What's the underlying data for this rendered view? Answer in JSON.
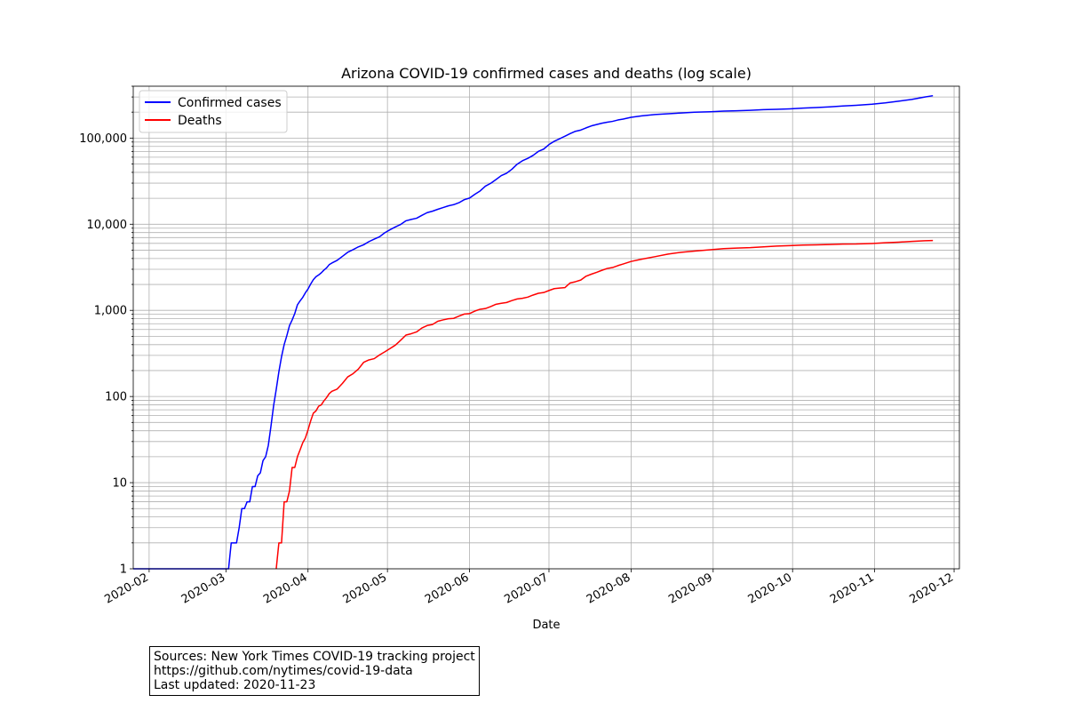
{
  "chart_data": {
    "type": "line",
    "title": "Arizona COVID-19 confirmed cases and deaths (log scale)",
    "xlabel": "Date",
    "ylabel": "",
    "y_scale": "log",
    "ylim": [
      1,
      400000
    ],
    "xlim": [
      "2020-01-26",
      "2020-12-03"
    ],
    "grid": true,
    "legend_position": "upper left",
    "x_tick_labels": [
      "2020-02",
      "2020-03",
      "2020-04",
      "2020-05",
      "2020-06",
      "2020-07",
      "2020-08",
      "2020-09",
      "2020-10",
      "2020-11",
      "2020-12"
    ],
    "x_ticks": [
      "2020-02-01",
      "2020-03-01",
      "2020-04-01",
      "2020-05-01",
      "2020-06-01",
      "2020-07-01",
      "2020-08-01",
      "2020-09-01",
      "2020-10-01",
      "2020-11-01",
      "2020-12-01"
    ],
    "y_ticks": [
      1,
      10,
      100,
      1000,
      10000,
      100000
    ],
    "y_tick_labels": [
      "1",
      "10",
      "100",
      "1,000",
      "10,000",
      "100,000"
    ],
    "series": [
      {
        "name": "Confirmed cases",
        "color": "#0000ff",
        "points": [
          [
            "2020-01-26",
            1
          ],
          [
            "2020-03-02",
            1
          ],
          [
            "2020-03-03",
            2
          ],
          [
            "2020-03-05",
            2
          ],
          [
            "2020-03-06",
            3
          ],
          [
            "2020-03-07",
            5
          ],
          [
            "2020-03-08",
            5
          ],
          [
            "2020-03-09",
            6
          ],
          [
            "2020-03-10",
            6
          ],
          [
            "2020-03-11",
            9
          ],
          [
            "2020-03-12",
            9
          ],
          [
            "2020-03-13",
            12
          ],
          [
            "2020-03-14",
            13
          ],
          [
            "2020-03-15",
            18
          ],
          [
            "2020-03-16",
            20
          ],
          [
            "2020-03-17",
            27
          ],
          [
            "2020-03-18",
            45
          ],
          [
            "2020-03-19",
            78
          ],
          [
            "2020-03-20",
            121
          ],
          [
            "2020-03-21",
            194
          ],
          [
            "2020-03-22",
            290
          ],
          [
            "2020-03-23",
            401
          ],
          [
            "2020-03-24",
            508
          ],
          [
            "2020-03-25",
            665
          ],
          [
            "2020-03-26",
            773
          ],
          [
            "2020-03-27",
            919
          ],
          [
            "2020-03-28",
            1159
          ],
          [
            "2020-03-29",
            1289
          ],
          [
            "2020-03-30",
            1413
          ],
          [
            "2020-03-31",
            1598
          ],
          [
            "2020-04-01",
            1769
          ],
          [
            "2020-04-02",
            2019
          ],
          [
            "2020-04-03",
            2269
          ],
          [
            "2020-04-04",
            2456
          ],
          [
            "2020-04-05",
            2575
          ],
          [
            "2020-04-06",
            2726
          ],
          [
            "2020-04-07",
            2932
          ],
          [
            "2020-04-08",
            3112
          ],
          [
            "2020-04-09",
            3393
          ],
          [
            "2020-04-10",
            3542
          ],
          [
            "2020-04-12",
            3806
          ],
          [
            "2020-04-14",
            4237
          ],
          [
            "2020-04-16",
            4724
          ],
          [
            "2020-04-18",
            5068
          ],
          [
            "2020-04-20",
            5459
          ],
          [
            "2020-04-22",
            5772
          ],
          [
            "2020-04-24",
            6280
          ],
          [
            "2020-04-26",
            6716
          ],
          [
            "2020-04-28",
            7148
          ],
          [
            "2020-04-30",
            7962
          ],
          [
            "2020-05-02",
            8640
          ],
          [
            "2020-05-04",
            9305
          ],
          [
            "2020-05-06",
            9945
          ],
          [
            "2020-05-08",
            10960
          ],
          [
            "2020-05-10",
            11380
          ],
          [
            "2020-05-12",
            11736
          ],
          [
            "2020-05-14",
            12674
          ],
          [
            "2020-05-16",
            13631
          ],
          [
            "2020-05-18",
            14170
          ],
          [
            "2020-05-20",
            14897
          ],
          [
            "2020-05-22",
            15608
          ],
          [
            "2020-05-24",
            16339
          ],
          [
            "2020-05-26",
            16864
          ],
          [
            "2020-05-28",
            17763
          ],
          [
            "2020-05-30",
            19255
          ],
          [
            "2020-06-01",
            20123
          ],
          [
            "2020-06-03",
            22223
          ],
          [
            "2020-06-05",
            24332
          ],
          [
            "2020-06-07",
            27678
          ],
          [
            "2020-06-09",
            29852
          ],
          [
            "2020-06-11",
            33039
          ],
          [
            "2020-06-13",
            36705
          ],
          [
            "2020-06-15",
            39097
          ],
          [
            "2020-06-17",
            43443
          ],
          [
            "2020-06-19",
            49798
          ],
          [
            "2020-06-21",
            54586
          ],
          [
            "2020-06-23",
            58179
          ],
          [
            "2020-06-25",
            63030
          ],
          [
            "2020-06-27",
            70051
          ],
          [
            "2020-06-29",
            74500
          ],
          [
            "2020-07-01",
            84092
          ],
          [
            "2020-07-03",
            91858
          ],
          [
            "2020-07-05",
            98089
          ],
          [
            "2020-07-07",
            105094
          ],
          [
            "2020-07-09",
            112671
          ],
          [
            "2020-07-11",
            119930
          ],
          [
            "2020-07-13",
            123824
          ],
          [
            "2020-07-15",
            131354
          ],
          [
            "2020-07-17",
            138523
          ],
          [
            "2020-07-19",
            143624
          ],
          [
            "2020-07-21",
            148683
          ],
          [
            "2020-07-23",
            152944
          ],
          [
            "2020-07-25",
            156301
          ],
          [
            "2020-07-27",
            162014
          ],
          [
            "2020-07-29",
            165934
          ],
          [
            "2020-08-01",
            174010
          ],
          [
            "2020-08-05",
            181097
          ],
          [
            "2020-08-10",
            187523
          ],
          [
            "2020-08-15",
            191721
          ],
          [
            "2020-08-20",
            195557
          ],
          [
            "2020-08-25",
            199459
          ],
          [
            "2020-08-31",
            202342
          ],
          [
            "2020-09-05",
            205666
          ],
          [
            "2020-09-10",
            207523
          ],
          [
            "2020-09-15",
            209907
          ],
          [
            "2020-09-20",
            213551
          ],
          [
            "2020-09-25",
            215852
          ],
          [
            "2020-09-30",
            218507
          ],
          [
            "2020-10-05",
            222538
          ],
          [
            "2020-10-10",
            226050
          ],
          [
            "2020-10-15",
            230407
          ],
          [
            "2020-10-20",
            235882
          ],
          [
            "2020-10-25",
            240122
          ],
          [
            "2020-10-31",
            247473
          ],
          [
            "2020-11-05",
            256540
          ],
          [
            "2020-11-10",
            268044
          ],
          [
            "2020-11-15",
            281198
          ],
          [
            "2020-11-20",
            299548
          ],
          [
            "2020-11-23",
            310265
          ]
        ]
      },
      {
        "name": "Deaths",
        "color": "#ff0000",
        "points": [
          [
            "2020-03-20",
            1
          ],
          [
            "2020-03-21",
            2
          ],
          [
            "2020-03-22",
            2
          ],
          [
            "2020-03-23",
            6
          ],
          [
            "2020-03-24",
            6
          ],
          [
            "2020-03-25",
            8
          ],
          [
            "2020-03-26",
            15
          ],
          [
            "2020-03-27",
            15
          ],
          [
            "2020-03-28",
            20
          ],
          [
            "2020-03-29",
            24
          ],
          [
            "2020-03-30",
            29
          ],
          [
            "2020-03-31",
            33
          ],
          [
            "2020-04-01",
            41
          ],
          [
            "2020-04-02",
            52
          ],
          [
            "2020-04-03",
            64
          ],
          [
            "2020-04-04",
            68
          ],
          [
            "2020-04-05",
            77
          ],
          [
            "2020-04-06",
            80
          ],
          [
            "2020-04-07",
            89
          ],
          [
            "2020-04-08",
            97
          ],
          [
            "2020-04-09",
            108
          ],
          [
            "2020-04-10",
            115
          ],
          [
            "2020-04-12",
            122
          ],
          [
            "2020-04-14",
            142
          ],
          [
            "2020-04-16",
            169
          ],
          [
            "2020-04-18",
            184
          ],
          [
            "2020-04-20",
            208
          ],
          [
            "2020-04-22",
            249
          ],
          [
            "2020-04-24",
            266
          ],
          [
            "2020-04-26",
            275
          ],
          [
            "2020-04-28",
            304
          ],
          [
            "2020-04-30",
            330
          ],
          [
            "2020-05-02",
            361
          ],
          [
            "2020-05-04",
            395
          ],
          [
            "2020-05-06",
            450
          ],
          [
            "2020-05-08",
            517
          ],
          [
            "2020-05-10",
            536
          ],
          [
            "2020-05-12",
            562
          ],
          [
            "2020-05-14",
            624
          ],
          [
            "2020-05-16",
            667
          ],
          [
            "2020-05-18",
            686
          ],
          [
            "2020-05-20",
            747
          ],
          [
            "2020-05-22",
            775
          ],
          [
            "2020-05-24",
            800
          ],
          [
            "2020-05-26",
            807
          ],
          [
            "2020-05-28",
            857
          ],
          [
            "2020-05-30",
            906
          ],
          [
            "2020-06-01",
            917
          ],
          [
            "2020-06-03",
            981
          ],
          [
            "2020-06-05",
            1030
          ],
          [
            "2020-06-07",
            1050
          ],
          [
            "2020-06-09",
            1106
          ],
          [
            "2020-06-11",
            1177
          ],
          [
            "2020-06-13",
            1207
          ],
          [
            "2020-06-15",
            1234
          ],
          [
            "2020-06-17",
            1300
          ],
          [
            "2020-06-19",
            1356
          ],
          [
            "2020-06-21",
            1381
          ],
          [
            "2020-06-23",
            1425
          ],
          [
            "2020-06-25",
            1506
          ],
          [
            "2020-06-27",
            1579
          ],
          [
            "2020-06-29",
            1611
          ],
          [
            "2020-07-01",
            1700
          ],
          [
            "2020-07-03",
            1788
          ],
          [
            "2020-07-05",
            1813
          ],
          [
            "2020-07-07",
            1835
          ],
          [
            "2020-07-09",
            2082
          ],
          [
            "2020-07-11",
            2151
          ],
          [
            "2020-07-13",
            2246
          ],
          [
            "2020-07-15",
            2492
          ],
          [
            "2020-07-17",
            2631
          ],
          [
            "2020-07-19",
            2763
          ],
          [
            "2020-07-21",
            2918
          ],
          [
            "2020-07-23",
            3065
          ],
          [
            "2020-07-25",
            3142
          ],
          [
            "2020-07-27",
            3304
          ],
          [
            "2020-07-29",
            3454
          ],
          [
            "2020-08-01",
            3695
          ],
          [
            "2020-08-05",
            3932
          ],
          [
            "2020-08-10",
            4199
          ],
          [
            "2020-08-15",
            4506
          ],
          [
            "2020-08-20",
            4728
          ],
          [
            "2020-08-25",
            4876
          ],
          [
            "2020-08-31",
            5052
          ],
          [
            "2020-09-05",
            5205
          ],
          [
            "2020-09-10",
            5288
          ],
          [
            "2020-09-15",
            5346
          ],
          [
            "2020-09-20",
            5460
          ],
          [
            "2020-09-25",
            5575
          ],
          [
            "2020-09-30",
            5650
          ],
          [
            "2020-10-05",
            5727
          ],
          [
            "2020-10-10",
            5759
          ],
          [
            "2020-10-15",
            5810
          ],
          [
            "2020-10-20",
            5874
          ],
          [
            "2020-10-25",
            5891
          ],
          [
            "2020-10-31",
            5979
          ],
          [
            "2020-11-05",
            6094
          ],
          [
            "2020-11-10",
            6192
          ],
          [
            "2020-11-15",
            6312
          ],
          [
            "2020-11-20",
            6426
          ],
          [
            "2020-11-23",
            6464
          ]
        ]
      }
    ]
  },
  "footer": {
    "sources_line": "Sources: New York Times COVID-19 tracking project",
    "url_line": "https://github.com/nytimes/covid-19-data",
    "updated_line": "Last updated: 2020-11-23"
  }
}
